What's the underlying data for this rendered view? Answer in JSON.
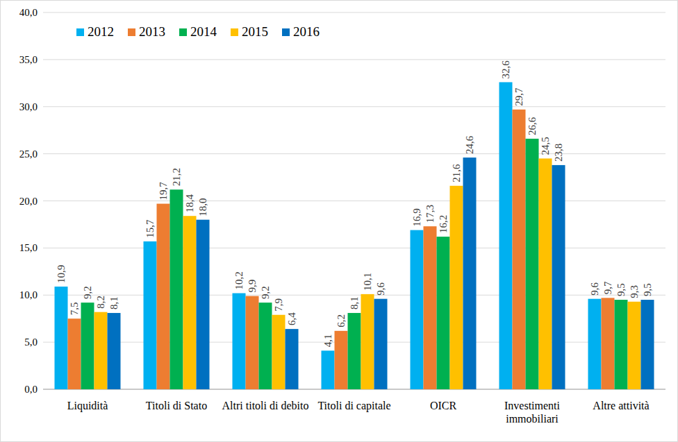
{
  "chart_data": {
    "type": "bar",
    "categories": [
      "Liquidità",
      "Titoli di Stato",
      "Altri titoli di debito",
      "Titoli di capitale",
      "OICR",
      "Investimenti immobiliari",
      "Altre attività"
    ],
    "series": [
      {
        "name": "2012",
        "color": "#00b0f0",
        "values": [
          10.9,
          15.7,
          10.2,
          4.1,
          16.9,
          32.6,
          9.6
        ],
        "value_labels": [
          "10,9",
          "15,7",
          "10,2",
          "4,1",
          "16,9",
          "32,6",
          "9,6"
        ]
      },
      {
        "name": "2013",
        "color": "#ed7d31",
        "values": [
          7.5,
          19.7,
          9.9,
          6.2,
          17.3,
          29.7,
          9.7
        ],
        "value_labels": [
          "7,5",
          "19,7",
          "9,9",
          "6,2",
          "17,3",
          "29,7",
          "9,7"
        ]
      },
      {
        "name": "2014",
        "color": "#00b050",
        "values": [
          9.2,
          21.2,
          9.2,
          8.1,
          16.2,
          26.6,
          9.5
        ],
        "value_labels": [
          "9,2",
          "21,2",
          "9,2",
          "8,1",
          "16,2",
          "26,6",
          "9,5"
        ]
      },
      {
        "name": "2015",
        "color": "#ffc000",
        "values": [
          8.2,
          18.4,
          7.9,
          10.1,
          21.6,
          24.5,
          9.3
        ],
        "value_labels": [
          "8,2",
          "18,4",
          "7,9",
          "10,1",
          "21,6",
          "24,5",
          "9,3"
        ]
      },
      {
        "name": "2016",
        "color": "#0070c0",
        "values": [
          8.1,
          18.0,
          6.4,
          9.6,
          24.6,
          23.8,
          9.5
        ],
        "value_labels": [
          "8,1",
          "18,0",
          "6,4",
          "9,6",
          "24,6",
          "23,8",
          "9,5"
        ]
      }
    ],
    "ylim": [
      0,
      40
    ],
    "yticks": [
      {
        "value": 0,
        "label": "0,0"
      },
      {
        "value": 5,
        "label": "5,0"
      },
      {
        "value": 10,
        "label": "10,0"
      },
      {
        "value": 15,
        "label": "15,0"
      },
      {
        "value": 20,
        "label": "20,0"
      },
      {
        "value": 25,
        "label": "25,0"
      },
      {
        "value": 30,
        "label": "30,0"
      },
      {
        "value": 35,
        "label": "35,0"
      },
      {
        "value": 40,
        "label": "40,0"
      }
    ],
    "grid": true,
    "legend": "upper left",
    "data_labels": true
  }
}
